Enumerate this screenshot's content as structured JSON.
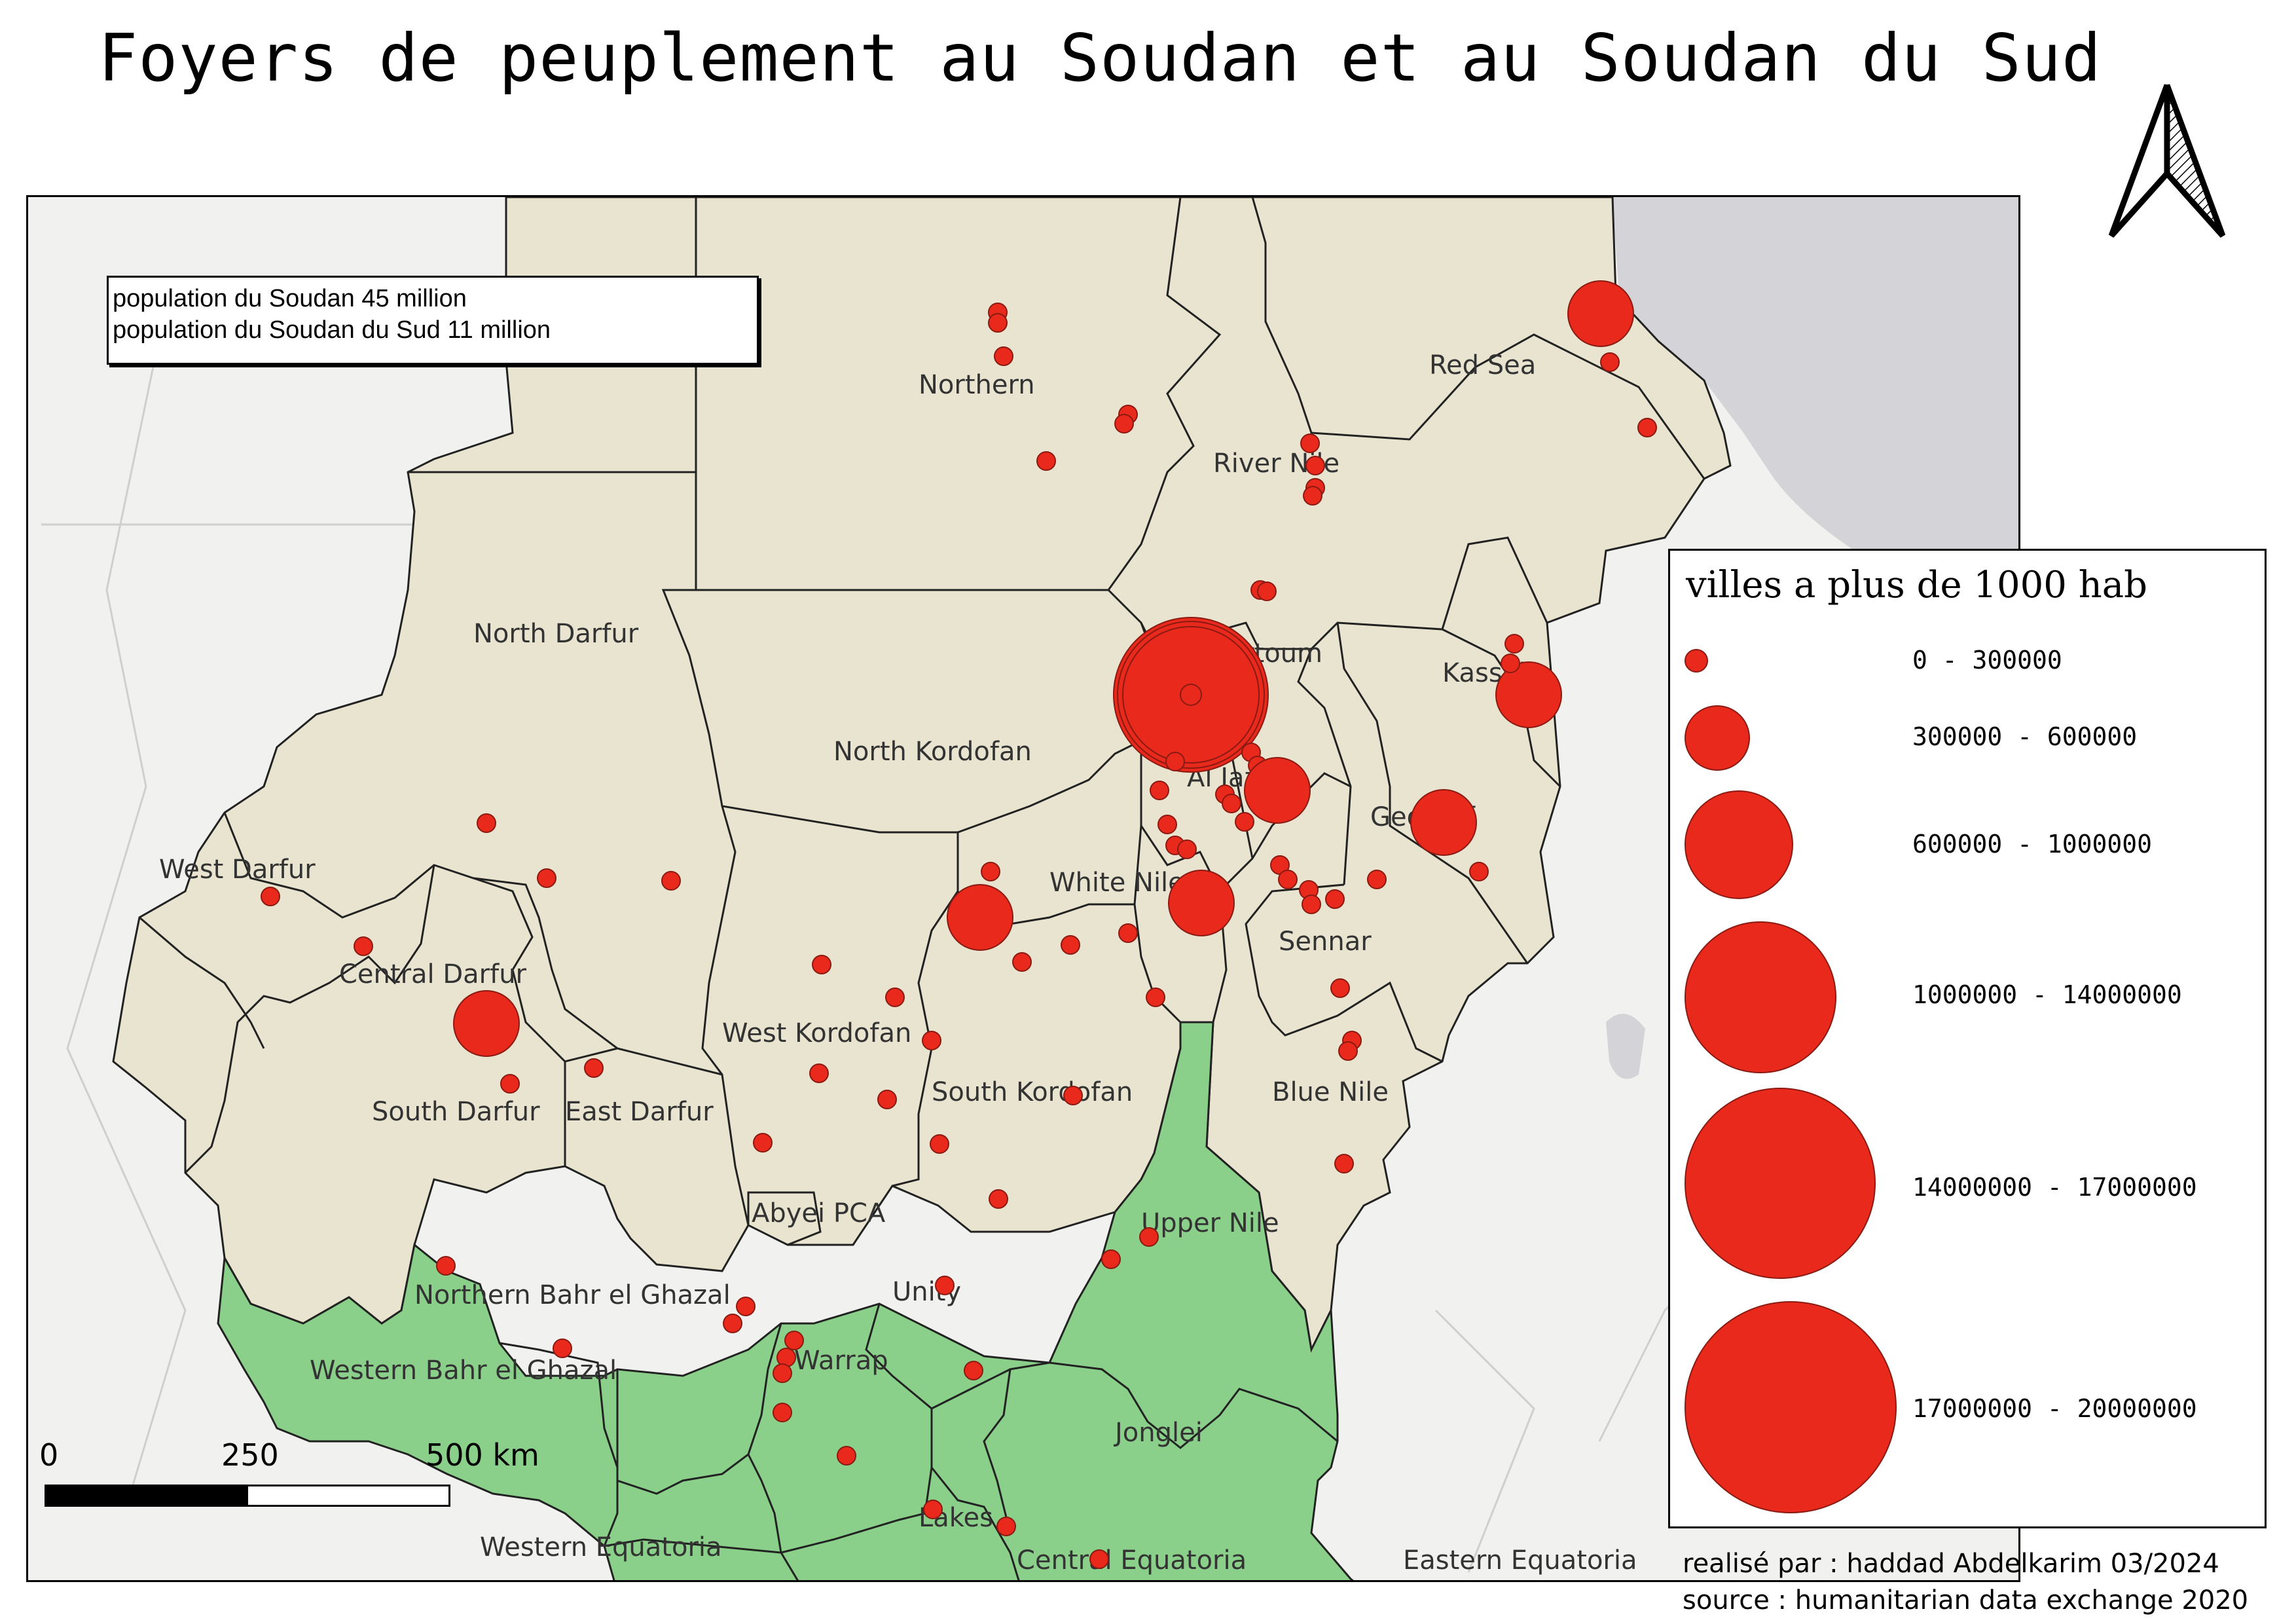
{
  "title": "Foyers de peuplement au Soudan et au Soudan du Sud",
  "info_box": {
    "line1": "population du Soudan 45 million",
    "line2": "population du Soudan du Sud 11 million"
  },
  "legend": {
    "title": "villes a plus de 1000 hab",
    "classes": [
      {
        "label": "0 - 300000"
      },
      {
        "label": "300000 - 600000"
      },
      {
        "label": "600000 - 1000000"
      },
      {
        "label": "1000000 - 14000000"
      },
      {
        "label": "14000000 - 17000000"
      },
      {
        "label": "17000000 - 20000000"
      }
    ]
  },
  "scale_bar": {
    "label_0": "0",
    "label_250": "250",
    "label_500": "500 km"
  },
  "credits": {
    "author": "realisé par : haddad Abdelkarim 03/2024",
    "source": "source : humanitarian data exchange 2020"
  },
  "colors": {
    "sudan_fill": "#e8e4d0",
    "south_sudan_fill": "#8ad08a",
    "sea": "#d4d4d8",
    "city": "#e8291c"
  },
  "regions": {
    "northern": "Northern",
    "red_sea": "Red Sea",
    "river_nile": "River Nile",
    "north_darfur": "North Darfur",
    "khartoum": "Khartoum",
    "kassala": "Kassala",
    "north_kordofan": "North Kordofan",
    "al_jazirah": "Al Jazirah",
    "gedaref": "Gedaref",
    "west_darfur": "West Darfur",
    "white_nile": "White Nile",
    "central_darfur": "Central Darfur",
    "sennar": "Sennar",
    "west_kordofan": "West Kordofan",
    "south_kordofan": "South Kordofan",
    "blue_nile": "Blue Nile",
    "south_darfur": "South Darfur",
    "east_darfur": "East Darfur",
    "abyei": "Abyei PCA",
    "upper_nile": "Upper Nile",
    "n_bahr_el_ghazal": "Northern Bahr el Ghazal",
    "unity": "Unity",
    "warrap": "Warrap",
    "w_bahr_el_ghazal": "Western Bahr el Ghazal",
    "jonglei": "Jonglei",
    "lakes": "Lakes",
    "western_equatoria": "Western Equatoria",
    "central_equatoria": "Central Equatoria",
    "eastern_equatoria": "Eastern Equatoria"
  }
}
